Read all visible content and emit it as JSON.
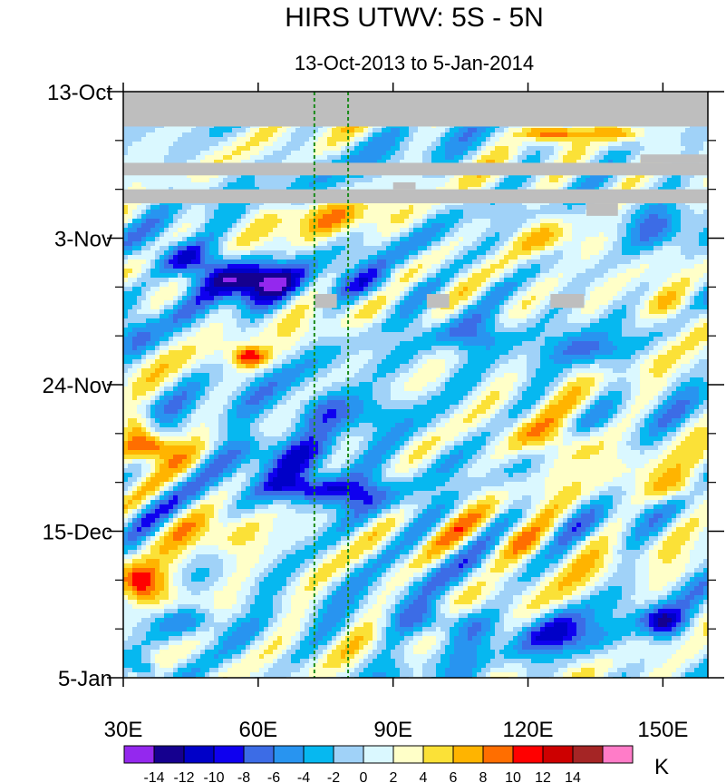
{
  "chart_data": {
    "type": "heatmap",
    "title": "HIRS UTWV: 5S - 5N",
    "subtitle": "13-Oct-2013 to 5-Jan-2014",
    "x_range": [
      30,
      160
    ],
    "x_ticks": [
      {
        "value": 30,
        "label": "30E"
      },
      {
        "value": 60,
        "label": "60E"
      },
      {
        "value": 90,
        "label": "90E"
      },
      {
        "value": 120,
        "label": "120E"
      },
      {
        "value": 150,
        "label": "150E"
      }
    ],
    "y_range_days": [
      0,
      84
    ],
    "y_direction": "time increases downward",
    "y_ticks": [
      {
        "day": 0,
        "label": "13-Oct"
      },
      {
        "day": 21,
        "label": "3-Nov"
      },
      {
        "day": 42,
        "label": "24-Nov"
      },
      {
        "day": 63,
        "label": "15-Dec"
      },
      {
        "day": 84,
        "label": "5-Jan"
      }
    ],
    "y_minor_tick_days": [
      7,
      14,
      28,
      35,
      49,
      56,
      70,
      77
    ],
    "reference_lines_lon": [
      72.5,
      80
    ],
    "reference_line_color": "#1a8a1a",
    "missing_color": "#bebebe",
    "missing_data": [
      {
        "lon": [
          30,
          160
        ],
        "day": [
          0,
          5
        ]
      },
      {
        "lon": [
          30,
          160
        ],
        "day": [
          10.2,
          12
        ]
      },
      {
        "lon": [
          145,
          160
        ],
        "day": [
          9,
          10.2
        ]
      },
      {
        "lon": [
          30,
          160
        ],
        "day": [
          14,
          16
        ]
      },
      {
        "lon": [
          90,
          95
        ],
        "day": [
          13,
          14
        ]
      },
      {
        "lon": [
          133,
          140
        ],
        "day": [
          16,
          17.8
        ]
      },
      {
        "lon": [
          72.5,
          77.5
        ],
        "day": [
          29,
          31
        ]
      },
      {
        "lon": [
          97.5,
          102.5
        ],
        "day": [
          29,
          31
        ]
      },
      {
        "lon": [
          125,
          132.5
        ],
        "day": [
          29,
          31
        ]
      }
    ],
    "anomaly_features_K": [
      {
        "lon": 58,
        "day": 27,
        "value": -14,
        "spread_lon": 10,
        "spread_day": 3
      },
      {
        "lon": 44,
        "day": 24,
        "value": -11,
        "spread_lon": 7,
        "spread_day": 2.5
      },
      {
        "lon": 78,
        "day": 46,
        "value": -7,
        "spread_lon": 14,
        "spread_day": 3
      },
      {
        "lon": 72,
        "day": 57,
        "value": -10,
        "spread_lon": 10,
        "spread_day": 2
      },
      {
        "lon": 64,
        "day": 52,
        "value": -7,
        "spread_lon": 14,
        "spread_day": 3.5
      },
      {
        "lon": 85,
        "day": 58,
        "value": -5,
        "spread_lon": 10,
        "spread_day": 3
      },
      {
        "lon": 86,
        "day": 28,
        "value": -6,
        "spread_lon": 8,
        "spread_day": 2.5
      },
      {
        "lon": 108,
        "day": 35,
        "value": -6,
        "spread_lon": 10,
        "spread_day": 2.5
      },
      {
        "lon": 134,
        "day": 37,
        "value": -6,
        "spread_lon": 8,
        "spread_day": 2.5
      },
      {
        "lon": 100,
        "day": 76,
        "value": -8,
        "spread_lon": 10,
        "spread_day": 2.5
      },
      {
        "lon": 128,
        "day": 78,
        "value": -7,
        "spread_lon": 10,
        "spread_day": 3
      },
      {
        "lon": 150,
        "day": 76,
        "value": -11,
        "spread_lon": 5,
        "spread_day": 2
      },
      {
        "lon": 46,
        "day": 76,
        "value": -6,
        "spread_lon": 8,
        "spread_day": 2.5
      },
      {
        "lon": 35,
        "day": 83,
        "value": -8,
        "spread_lon": 3,
        "spread_day": 1.5
      },
      {
        "lon": 150,
        "day": 20,
        "value": -5,
        "spread_lon": 8,
        "spread_day": 3
      },
      {
        "lon": 33,
        "day": 35,
        "value": -4,
        "spread_lon": 4,
        "spread_day": 3
      },
      {
        "lon": 125,
        "day": 6,
        "value": 11,
        "spread_lon": 6,
        "spread_day": 1.2
      },
      {
        "lon": 140,
        "day": 6,
        "value": 7,
        "spread_lon": 6,
        "spread_day": 1.2
      },
      {
        "lon": 36,
        "day": 51,
        "value": 11,
        "spread_lon": 6,
        "spread_day": 2
      },
      {
        "lon": 33,
        "day": 48,
        "value": 7,
        "spread_lon": 4,
        "spread_day": 2
      },
      {
        "lon": 58,
        "day": 38,
        "value": 10,
        "spread_lon": 4,
        "spread_day": 1.5
      },
      {
        "lon": 126,
        "day": 50,
        "value": 8,
        "spread_lon": 10,
        "spread_day": 3
      },
      {
        "lon": 154,
        "day": 57,
        "value": 7,
        "spread_lon": 8,
        "spread_day": 2.5
      },
      {
        "lon": 33,
        "day": 70,
        "value": 10,
        "spread_lon": 5,
        "spread_day": 2.5
      },
      {
        "lon": 42,
        "day": 73,
        "value": 6,
        "spread_lon": 8,
        "spread_day": 2.5
      },
      {
        "lon": 153,
        "day": 31,
        "value": 6,
        "spread_lon": 8,
        "spread_day": 3
      },
      {
        "lon": 75,
        "day": 18,
        "value": 4,
        "spread_lon": 16,
        "spread_day": 2.5
      },
      {
        "lon": 120,
        "day": 65,
        "value": 5,
        "spread_lon": 12,
        "spread_day": 3
      },
      {
        "lon": 125,
        "day": 21,
        "value": 5,
        "spread_lon": 10,
        "spread_day": 2.5
      },
      {
        "lon": 50,
        "day": 63,
        "value": 5,
        "spread_lon": 10,
        "spread_day": 3
      }
    ],
    "colorbar": {
      "units": "K",
      "levels": [
        -14,
        -12,
        -10,
        -8,
        -6,
        -4,
        -2,
        0,
        2,
        4,
        6,
        8,
        10,
        12,
        14
      ],
      "labels": [
        "-14",
        "-12",
        "-10",
        "-8",
        "-6",
        "-4",
        "-2",
        "0",
        "2",
        "4",
        "6",
        "8",
        "10",
        "12",
        "14"
      ],
      "colors": [
        "#9428ee",
        "#15008f",
        "#0000c8",
        "#0f00ef",
        "#3c6ce6",
        "#2894f0",
        "#06b8f0",
        "#a0d2f8",
        "#daf8ff",
        "#ffffc8",
        "#fbe137",
        "#ffb400",
        "#ff6e00",
        "#ff0000",
        "#cd0000",
        "#a52525",
        "#ff7cc8"
      ]
    }
  }
}
